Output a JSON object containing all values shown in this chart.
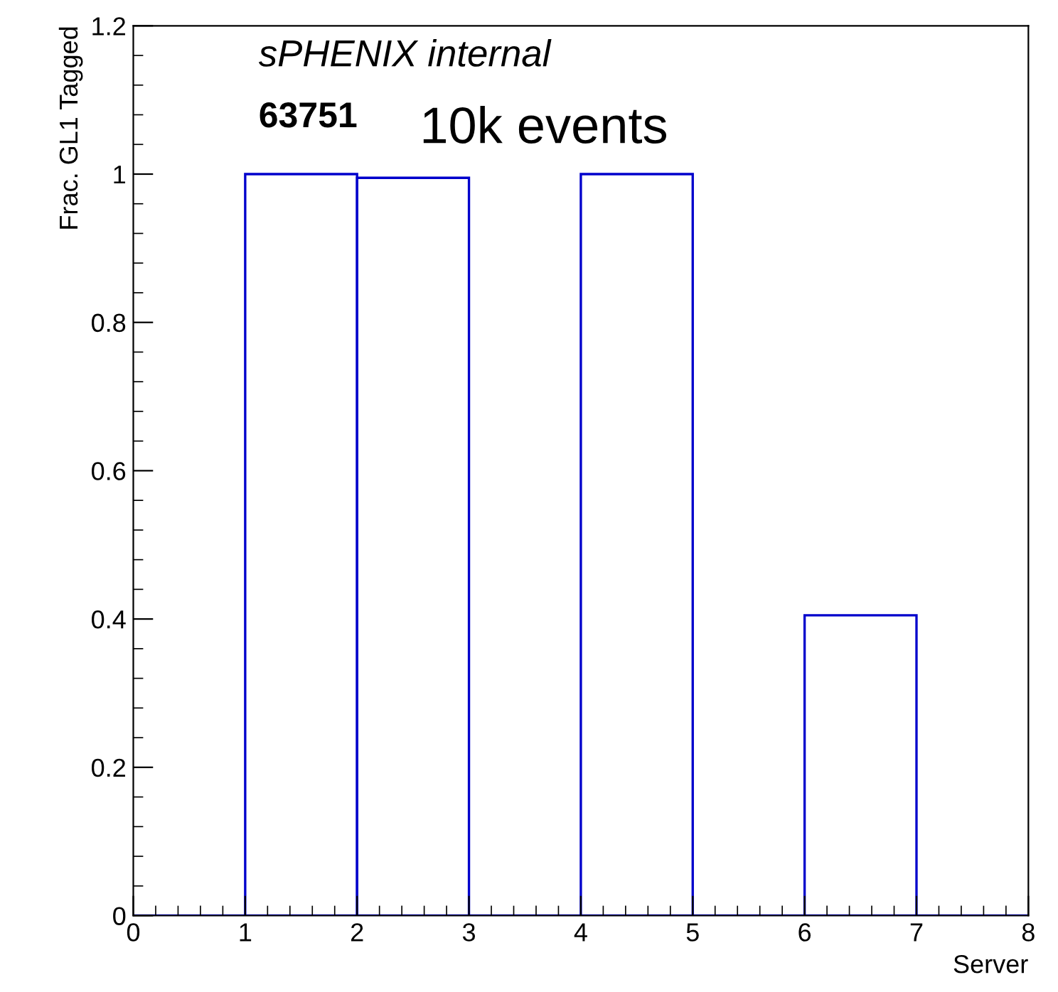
{
  "chart_data": {
    "type": "histogram",
    "xlabel": "Server",
    "ylabel": "Frac. GL1 Tagged",
    "bins": [
      0,
      1,
      2,
      3,
      4,
      5,
      6,
      7,
      8
    ],
    "values": [
      0,
      1.0,
      0.995,
      0,
      1.0,
      0,
      0.405,
      0
    ],
    "color": "#0000cc",
    "xlim": [
      0,
      8
    ],
    "xticks": [
      0,
      1,
      2,
      3,
      4,
      5,
      6,
      7,
      8
    ],
    "ylim": [
      0,
      1.2
    ],
    "yticks": [
      0,
      0.2,
      0.4,
      0.6,
      0.8,
      1,
      1.2
    ],
    "grid": false,
    "legend": false,
    "annotations": [
      "sPHENIX internal",
      "63751",
      "10k events"
    ]
  }
}
